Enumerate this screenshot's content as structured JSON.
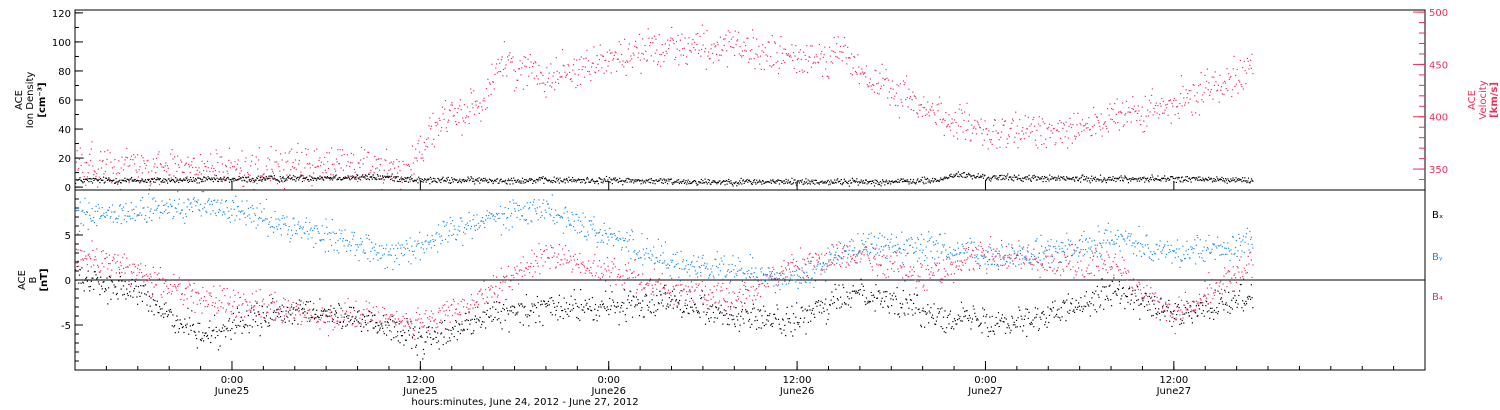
{
  "colors": {
    "density": "#000000",
    "velocity": "#e8305c",
    "bx": "#000000",
    "by": "#1e8ce6",
    "bz": "#e8305c",
    "axis": "#000000"
  },
  "chart_data": [
    {
      "type": "scatter",
      "panel": "top",
      "x_range": [
        "2012-06-24T14:00",
        "2012-06-28T04:00"
      ],
      "left_axis": {
        "label_lines": [
          "ACE",
          "Ion Density",
          "[cm⁻³]"
        ],
        "range": [
          -2,
          122
        ],
        "ticks": [
          0,
          20,
          40,
          60,
          80,
          100,
          120
        ]
      },
      "right_axis": {
        "label_lines": [
          "ACE",
          "Velocity",
          "[km/s]"
        ],
        "range": [
          330,
          502
        ],
        "ticks": [
          350,
          400,
          450,
          500
        ]
      },
      "series": [
        {
          "key": "density",
          "axis": "left",
          "x": [
            "2012-06-24T14:00",
            "2012-06-24T20:00",
            "2012-06-25T02:00",
            "2012-06-25T06:00",
            "2012-06-25T10:00",
            "2012-06-25T12:00",
            "2012-06-25T18:00",
            "2012-06-26T00:00",
            "2012-06-26T06:00",
            "2012-06-26T12:00",
            "2012-06-26T18:00",
            "2012-06-26T21:00",
            "2012-06-26T22:00",
            "2012-06-27T00:00",
            "2012-06-27T06:00",
            "2012-06-27T12:00",
            "2012-06-27T17:00"
          ],
          "y": [
            5,
            5,
            6,
            7,
            7,
            5,
            5,
            5,
            4,
            4,
            4,
            5,
            9,
            7,
            6,
            6,
            5
          ]
        },
        {
          "key": "velocity",
          "axis": "right",
          "x": [
            "2012-06-24T14:00",
            "2012-06-24T20:00",
            "2012-06-25T00:00",
            "2012-06-25T04:00",
            "2012-06-25T08:00",
            "2012-06-25T11:00",
            "2012-06-25T13:00",
            "2012-06-25T16:00",
            "2012-06-25T17:00",
            "2012-06-25T20:00",
            "2012-06-26T00:00",
            "2012-06-26T04:00",
            "2012-06-26T08:00",
            "2012-06-26T12:00",
            "2012-06-26T15:00",
            "2012-06-26T16:00",
            "2012-06-26T20:00",
            "2012-06-27T00:00",
            "2012-06-27T06:00",
            "2012-06-27T12:00",
            "2012-06-27T15:00",
            "2012-06-27T17:00"
          ],
          "y": [
            355,
            352,
            350,
            353,
            356,
            348,
            392,
            415,
            452,
            440,
            455,
            470,
            465,
            455,
            462,
            440,
            410,
            382,
            392,
            410,
            435,
            450
          ]
        }
      ]
    },
    {
      "type": "scatter",
      "panel": "bottom",
      "x_range": [
        "2012-06-24T14:00",
        "2012-06-28T04:00"
      ],
      "left_axis": {
        "label_lines": [
          "ACE",
          "B",
          "[nT]"
        ],
        "range": [
          -10,
          10
        ],
        "ticks": [
          -5,
          0,
          5
        ]
      },
      "zero_line": true,
      "legend": [
        "Bₓ",
        "Bᵧ",
        "B₄"
      ],
      "series": [
        {
          "key": "bx",
          "name": "Bx",
          "x": [
            "2012-06-24T14:00",
            "2012-06-24T18:00",
            "2012-06-24T22:00",
            "2012-06-25T02:00",
            "2012-06-25T06:00",
            "2012-06-25T10:00",
            "2012-06-25T12:00",
            "2012-06-25T16:00",
            "2012-06-25T20:00",
            "2012-06-26T00:00",
            "2012-06-26T04:00",
            "2012-06-26T08:00",
            "2012-06-26T12:00",
            "2012-06-26T16:00",
            "2012-06-26T20:00",
            "2012-06-27T00:00",
            "2012-06-27T04:00",
            "2012-06-27T08:00",
            "2012-06-27T12:00",
            "2012-06-27T17:00"
          ],
          "y": [
            0.5,
            -1.5,
            -6,
            -4,
            -3.5,
            -5,
            -7,
            -4,
            -3,
            -3,
            -2,
            -4,
            -4.5,
            -1,
            -3.5,
            -4.5,
            -4,
            -1,
            -4,
            -2
          ]
        },
        {
          "key": "by",
          "name": "By",
          "x": [
            "2012-06-24T14:00",
            "2012-06-24T18:00",
            "2012-06-24T22:00",
            "2012-06-25T02:00",
            "2012-06-25T06:00",
            "2012-06-25T10:00",
            "2012-06-25T12:00",
            "2012-06-25T16:00",
            "2012-06-25T20:00",
            "2012-06-26T00:00",
            "2012-06-26T04:00",
            "2012-06-26T08:00",
            "2012-06-26T12:00",
            "2012-06-26T16:00",
            "2012-06-26T20:00",
            "2012-06-27T00:00",
            "2012-06-27T04:00",
            "2012-06-27T08:00",
            "2012-06-27T12:00",
            "2012-06-27T17:00"
          ],
          "y": [
            7,
            7.5,
            8.5,
            7,
            5,
            3,
            4,
            7,
            8,
            5,
            2,
            1,
            0,
            4,
            4,
            2.5,
            3,
            5,
            3,
            4
          ]
        },
        {
          "key": "bz",
          "name": "Bz",
          "x": [
            "2012-06-24T14:00",
            "2012-06-24T18:00",
            "2012-06-24T22:00",
            "2012-06-25T02:00",
            "2012-06-25T06:00",
            "2012-06-25T10:00",
            "2012-06-25T12:00",
            "2012-06-25T16:00",
            "2012-06-25T20:00",
            "2012-06-26T00:00",
            "2012-06-26T04:00",
            "2012-06-26T08:00",
            "2012-06-26T12:00",
            "2012-06-26T16:00",
            "2012-06-26T20:00",
            "2012-06-27T00:00",
            "2012-06-27T04:00",
            "2012-06-27T08:00",
            "2012-06-27T12:00",
            "2012-06-27T17:00"
          ],
          "y": [
            3,
            1,
            -2,
            -3,
            -4,
            -4,
            -5,
            -2,
            3,
            1,
            -1,
            -2,
            2,
            3,
            0.5,
            3,
            2,
            2,
            -4,
            2
          ]
        }
      ]
    }
  ],
  "x_axis": {
    "ticks": [
      {
        "t": "2012-06-25T00:00",
        "time": "0:00",
        "day": "June25"
      },
      {
        "t": "2012-06-25T12:00",
        "time": "12:00",
        "day": "June25"
      },
      {
        "t": "2012-06-26T00:00",
        "time": "0:00",
        "day": "June26"
      },
      {
        "t": "2012-06-26T12:00",
        "time": "12:00",
        "day": "June26"
      },
      {
        "t": "2012-06-27T00:00",
        "time": "0:00",
        "day": "June27"
      },
      {
        "t": "2012-06-27T12:00",
        "time": "12:00",
        "day": "June27"
      }
    ],
    "label": "hours:minutes, June 24, 2012 - June 27, 2012"
  }
}
